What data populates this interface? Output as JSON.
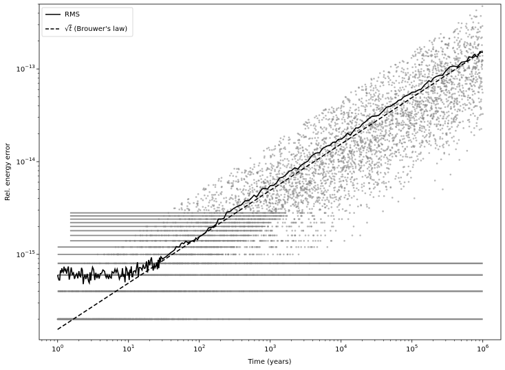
{
  "chart_data": {
    "type": "scatter",
    "xlabel": "Time (years)",
    "ylabel": "Rel. energy error",
    "xscale": "log",
    "yscale": "log",
    "xlim": [
      0.55,
      1800000
    ],
    "ylim": [
      1.2e-16,
      5e-13
    ],
    "x_ticks": [
      {
        "value": 1,
        "base": "10",
        "exp": "0"
      },
      {
        "value": 10,
        "base": "10",
        "exp": "1"
      },
      {
        "value": 100,
        "base": "10",
        "exp": "2"
      },
      {
        "value": 1000,
        "base": "10",
        "exp": "3"
      },
      {
        "value": 10000,
        "base": "10",
        "exp": "4"
      },
      {
        "value": 100000,
        "base": "10",
        "exp": "5"
      },
      {
        "value": 1000000,
        "base": "10",
        "exp": "6"
      }
    ],
    "y_ticks": [
      {
        "value": 1e-15,
        "base": "10",
        "exp": "−15"
      },
      {
        "value": 1e-14,
        "base": "10",
        "exp": "−14"
      },
      {
        "value": 1e-13,
        "base": "10",
        "exp": "−13"
      }
    ],
    "legend": {
      "placement": "upper-left",
      "entries": [
        {
          "label": "RMS",
          "style": "solid"
        },
        {
          "label_prefix": "√",
          "label_symbol": "t",
          "label_suffix": " (Brouwer's law)",
          "style": "dashed"
        }
      ]
    },
    "series": [
      {
        "name": "RMS",
        "style": "solid",
        "color": "#000000",
        "x": [
          1,
          1.2,
          1.5,
          2,
          2.5,
          3,
          4,
          5,
          6,
          8,
          10,
          12,
          15,
          20,
          25,
          30,
          40,
          50,
          60,
          80,
          100,
          150,
          200,
          300,
          500,
          700,
          1000,
          1500,
          2000,
          3000,
          5000,
          7000,
          10000,
          15000,
          20000,
          30000,
          50000,
          70000,
          100000,
          150000,
          200000,
          300000,
          500000,
          700000,
          1000000
        ],
        "y": [
          6e-16,
          6.4e-16,
          6e-16,
          6.6e-16,
          5.4e-16,
          6.2e-16,
          6.2e-16,
          6e-16,
          6.4e-16,
          5.8e-16,
          6.3e-16,
          6.6e-16,
          7.1e-16,
          7.6e-16,
          8.2e-16,
          8.9e-16,
          1.05e-15,
          1.2e-15,
          1.3e-15,
          1.4e-15,
          1.55e-15,
          1.95e-15,
          2.4e-15,
          3.1e-15,
          3.8e-15,
          4.6e-15,
          5.5e-15,
          6.8e-15,
          8e-15,
          9.6e-15,
          1.25e-14,
          1.5e-14,
          1.75e-14,
          2.15e-14,
          2.55e-14,
          3.1e-14,
          3.95e-14,
          4.65e-14,
          5.6e-14,
          6.7e-14,
          7.9e-14,
          9.5e-14,
          1.18e-13,
          1.33e-13,
          1.5e-13
        ]
      },
      {
        "name": "√t (Brouwer's law)",
        "style": "dashed",
        "color": "#000000",
        "x": [
          1,
          1000000
        ],
        "y": [
          1.55e-16,
          1.55e-13
        ]
      }
    ],
    "scatter_cloud": {
      "color": "#808080",
      "opacity": 0.55,
      "quantized_levels": [
        2e-16,
        4e-16,
        6e-16,
        8e-16,
        1e-15,
        1.2e-15,
        1.4e-15,
        1.6e-15,
        1.8e-15,
        2e-15,
        2.2e-15,
        2.4e-15,
        2.6e-15,
        2.8e-15
      ],
      "x_range": [
        1,
        1000000
      ],
      "upper_envelope_at_1e6": 4e-13,
      "lower_envelope_at_1e6": 2e-16
    }
  }
}
